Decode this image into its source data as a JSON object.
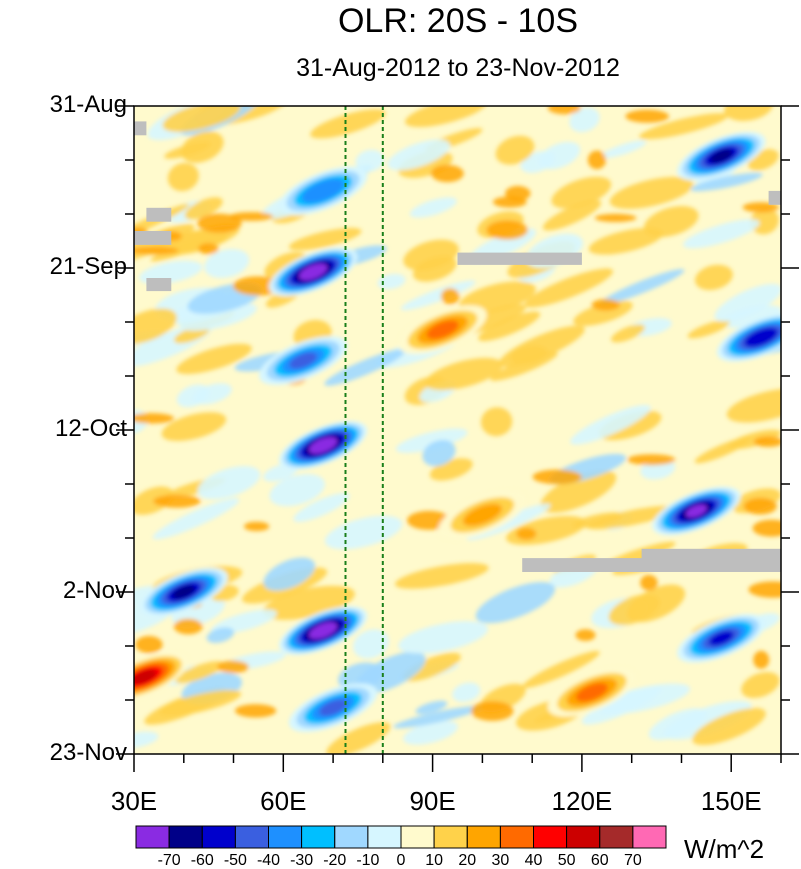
{
  "chart_data": {
    "type": "heatmap",
    "title": "OLR: 20S - 10S",
    "subtitle": "31-Aug-2012 to 23-Nov-2012",
    "x_tick_labels": [
      "30E",
      "60E",
      "90E",
      "120E",
      "150E"
    ],
    "x_tick_values": [
      30,
      60,
      90,
      120,
      150
    ],
    "xlim": [
      30,
      160
    ],
    "y_tick_labels": [
      "31-Aug",
      "21-Sep",
      "12-Oct",
      "2-Nov",
      "23-Nov"
    ],
    "y_tick_days": [
      0,
      21,
      42,
      63,
      84
    ],
    "ylim_days": [
      0,
      84
    ],
    "reference_lines_lon": [
      72.5,
      80
    ],
    "colorbar": {
      "units": "W/m^2",
      "labels": [
        "-70",
        "-60",
        "-50",
        "-40",
        "-30",
        "-20",
        "-10",
        "0",
        "10",
        "20",
        "30",
        "40",
        "50",
        "60",
        "70"
      ],
      "colors": [
        "#8a2be2",
        "#000088",
        "#0000cc",
        "#3a5fe0",
        "#1e90ff",
        "#00bfff",
        "#a0d8ff",
        "#d6f6ff",
        "#fffacd",
        "#ffd24a",
        "#ffa500",
        "#ff6a00",
        "#ff0000",
        "#cc0000",
        "#a52a2a",
        "#ff69b4"
      ]
    },
    "missing_color": "#bebebe",
    "anomaly_features": [
      {
        "lon": 68,
        "day": 11,
        "value": -35
      },
      {
        "lon": 66,
        "day": 21.5,
        "value": -75
      },
      {
        "lon": 64,
        "day": 33,
        "value": -40
      },
      {
        "lon": 68,
        "day": 44,
        "value": -75
      },
      {
        "lon": 40,
        "day": 63,
        "value": -60
      },
      {
        "lon": 68,
        "day": 68,
        "value": -75
      },
      {
        "lon": 70,
        "day": 78,
        "value": -40
      },
      {
        "lon": 143,
        "day": 52.5,
        "value": -70
      },
      {
        "lon": 148,
        "day": 6.5,
        "value": -60
      },
      {
        "lon": 148,
        "day": 69,
        "value": -50
      },
      {
        "lon": 156,
        "day": 30,
        "value": -55
      },
      {
        "lon": 32,
        "day": 74,
        "value": 45
      },
      {
        "lon": 92,
        "day": 29,
        "value": 25
      },
      {
        "lon": 100,
        "day": 53,
        "value": 20
      },
      {
        "lon": 122,
        "day": 76,
        "value": 30
      }
    ]
  }
}
